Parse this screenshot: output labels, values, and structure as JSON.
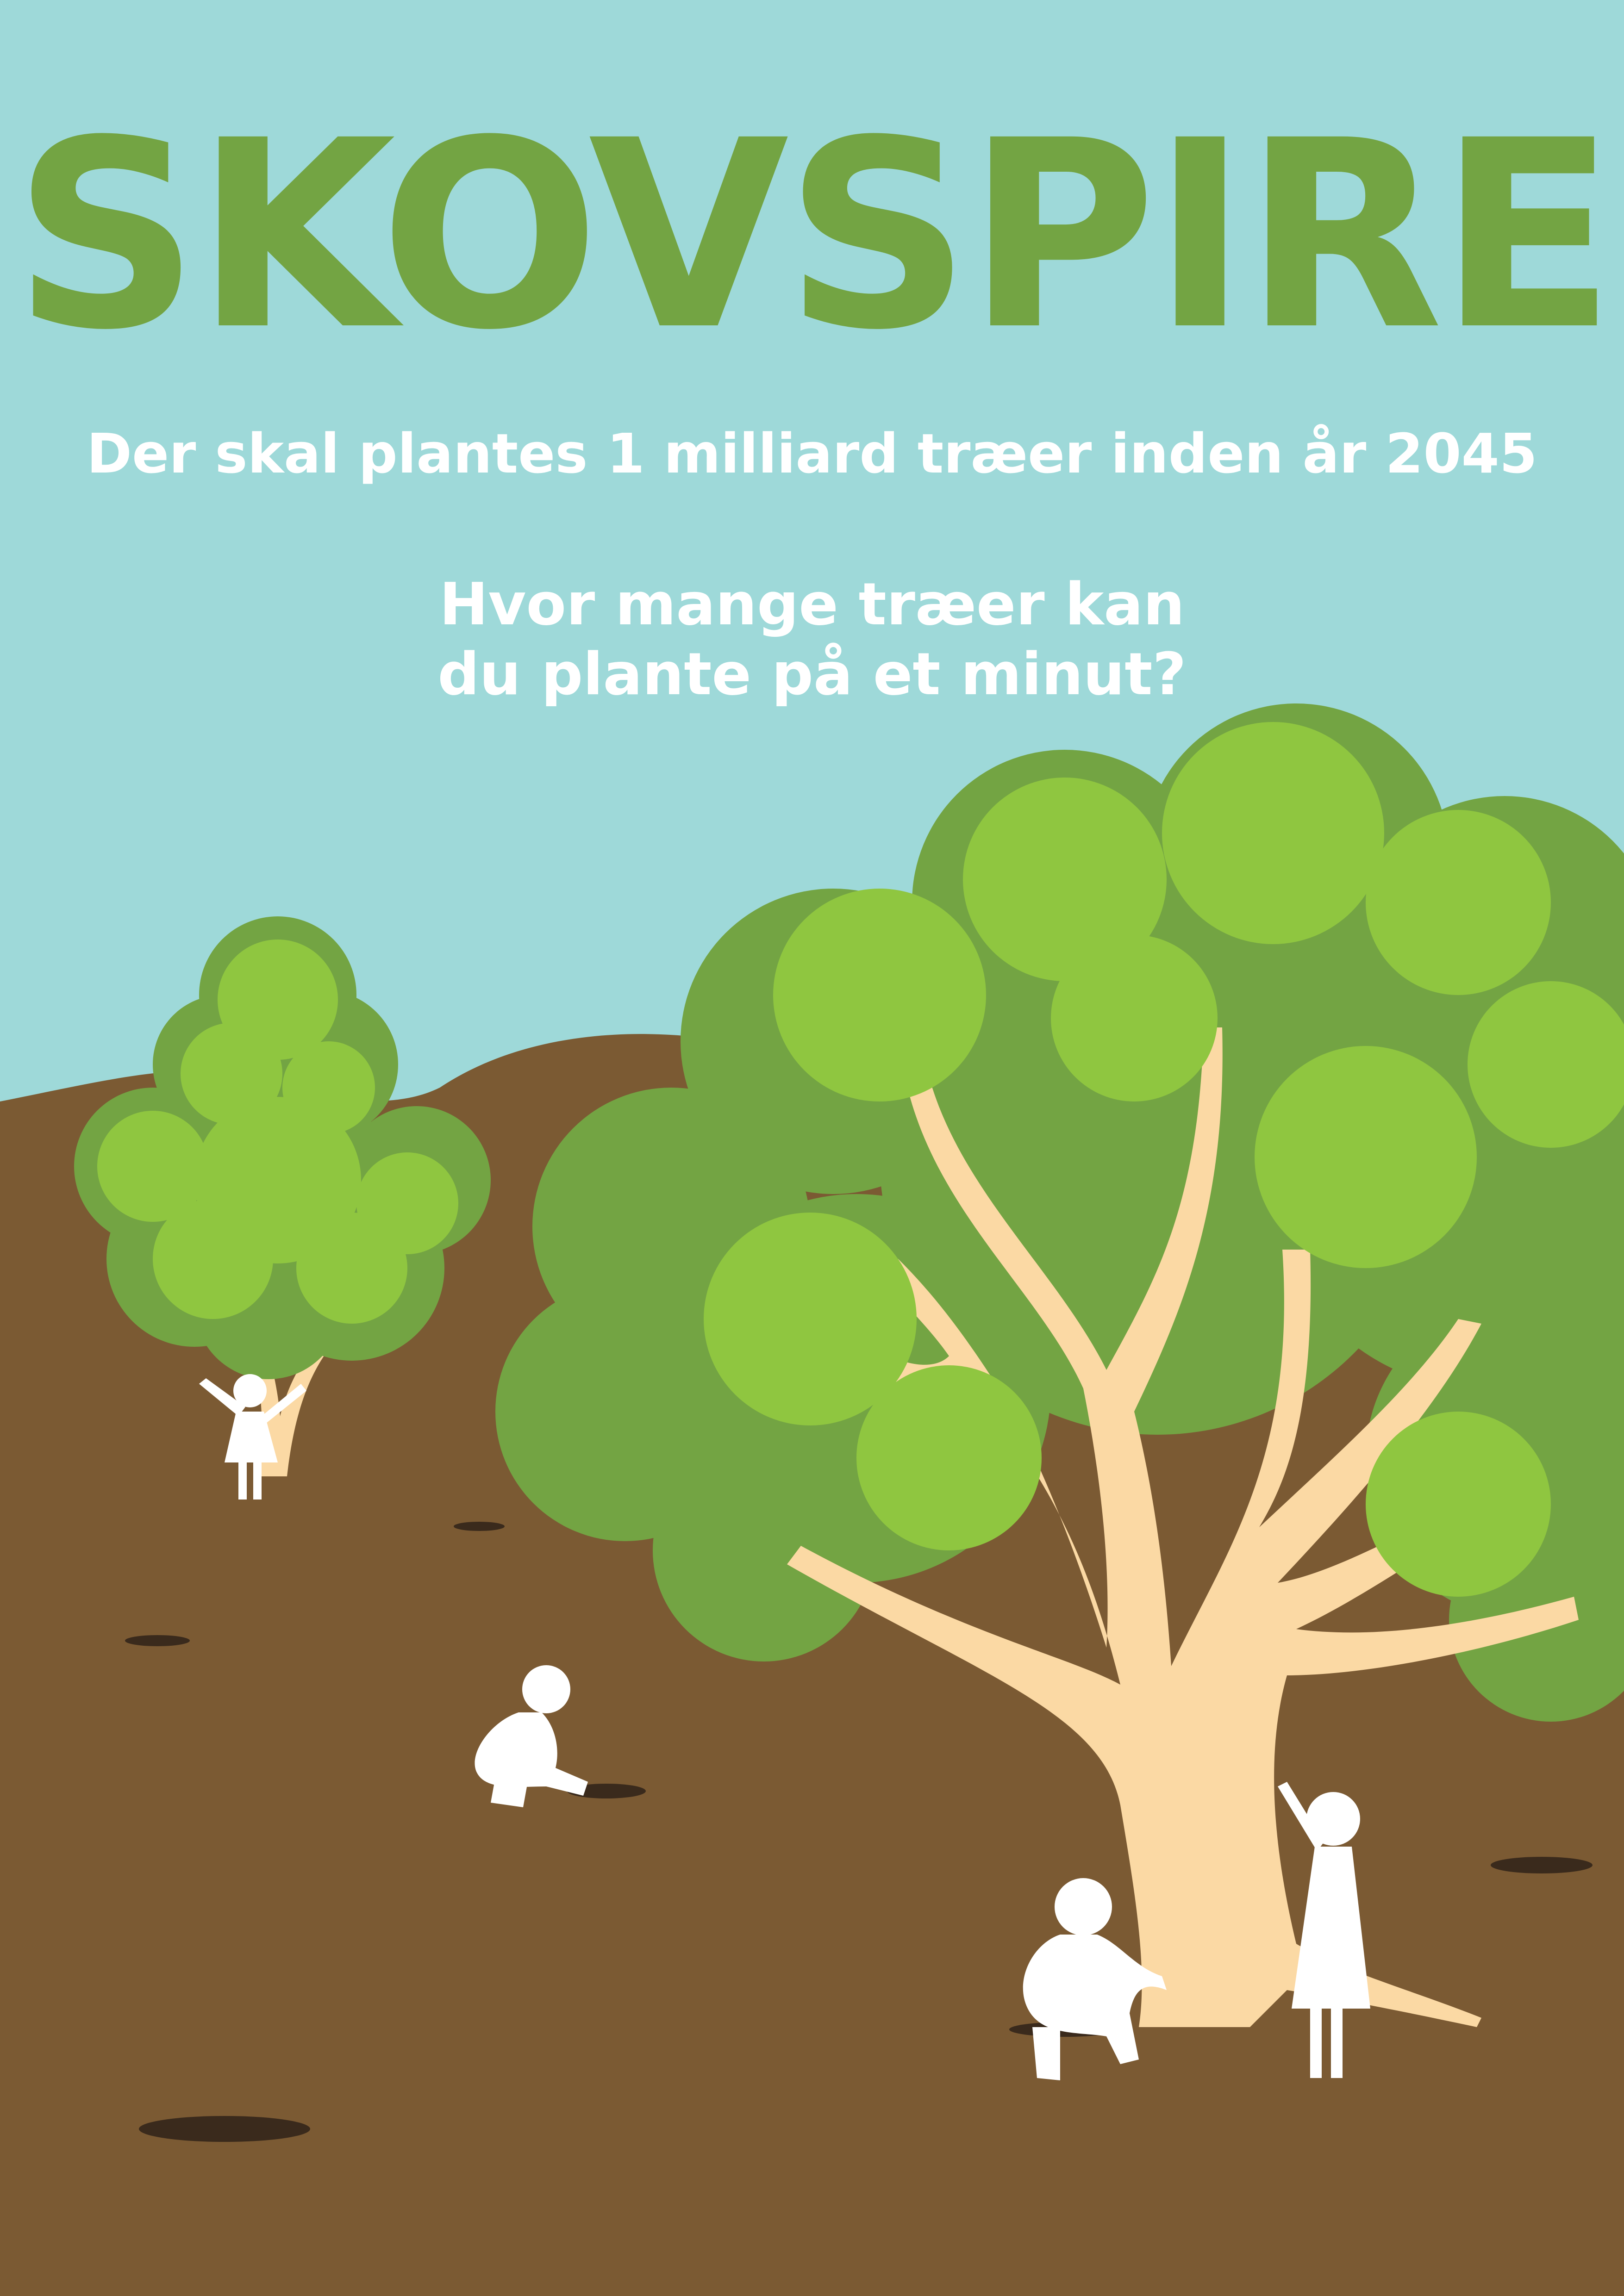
{
  "poster": {
    "logo": "SKOVSPIRE",
    "headline": "Der skal plantes 1 milliard træer inden år 2045",
    "question_line1": "Hvor mange træer kan",
    "question_line2": "du plante på et minut?"
  },
  "colors": {
    "sky": "#9ed9d9",
    "ground": "#7b5a33",
    "hole": "#3a2a1c",
    "leaf_light": "#8fc640",
    "leaf_dark": "#73a443",
    "trunk": "#fbd9a4",
    "silhouette": "#ffffff"
  }
}
